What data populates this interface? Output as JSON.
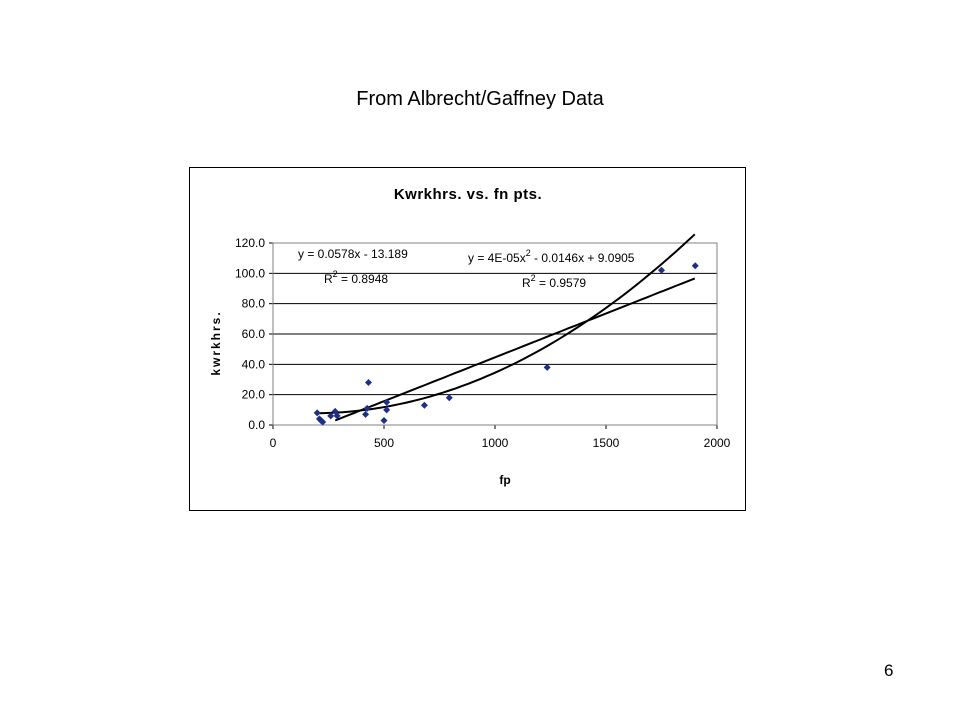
{
  "slide": {
    "title": "From Albrecht/Gaffney Data",
    "page_number": "6"
  },
  "chart_data": {
    "type": "scatter",
    "title": "Kwrkhrs. vs. fn pts.",
    "xlabel": "fp",
    "ylabel": "kwrkhrs.",
    "xlim": [
      0,
      2000
    ],
    "ylim": [
      0,
      120
    ],
    "x_ticks": [
      0,
      500,
      1000,
      1500,
      2000
    ],
    "x_tick_labels": [
      "0",
      "500",
      "1000",
      "1500",
      "2000"
    ],
    "y_ticks": [
      0,
      20,
      40,
      60,
      80,
      100,
      120
    ],
    "y_tick_labels": [
      "0.0",
      "20.0",
      "40.0",
      "60.0",
      "80.0",
      "100.0",
      "120.0"
    ],
    "grid": "horizontal",
    "legend": "none",
    "marker_color": "#1f2f86",
    "series": [
      {
        "points": [
          {
            "x": 199,
            "y": 8
          },
          {
            "x": 209,
            "y": 4
          },
          {
            "x": 216,
            "y": 3
          },
          {
            "x": 224,
            "y": 2
          },
          {
            "x": 260,
            "y": 6
          },
          {
            "x": 280,
            "y": 9
          },
          {
            "x": 289,
            "y": 6
          },
          {
            "x": 417,
            "y": 7
          },
          {
            "x": 424,
            "y": 11
          },
          {
            "x": 430,
            "y": 28
          },
          {
            "x": 500,
            "y": 3
          },
          {
            "x": 512,
            "y": 10
          },
          {
            "x": 512,
            "y": 15
          },
          {
            "x": 682,
            "y": 13
          },
          {
            "x": 794,
            "y": 18
          },
          {
            "x": 1235,
            "y": 38
          },
          {
            "x": 1750,
            "y": 102
          },
          {
            "x": 1902,
            "y": 105
          }
        ]
      }
    ],
    "trendlines": [
      {
        "type": "linear",
        "coefficients": [
          0.0578,
          -13.189
        ],
        "x_range": [
          280,
          1900
        ],
        "equation_label": "y = 0.0578x - 13.189",
        "r2_label": "0.8948"
      },
      {
        "type": "polynomial",
        "coefficients": [
          4e-05,
          -0.0146,
          9.0905
        ],
        "x_range": [
          199,
          1900
        ],
        "equation_label": "y = 4E-05x",
        "equation_label_rest": " - 0.0146x + 9.0905",
        "r2_label": "0.9579"
      }
    ],
    "r2_prefix": "R",
    "r2_suffix": " = ",
    "superscript": "2"
  }
}
